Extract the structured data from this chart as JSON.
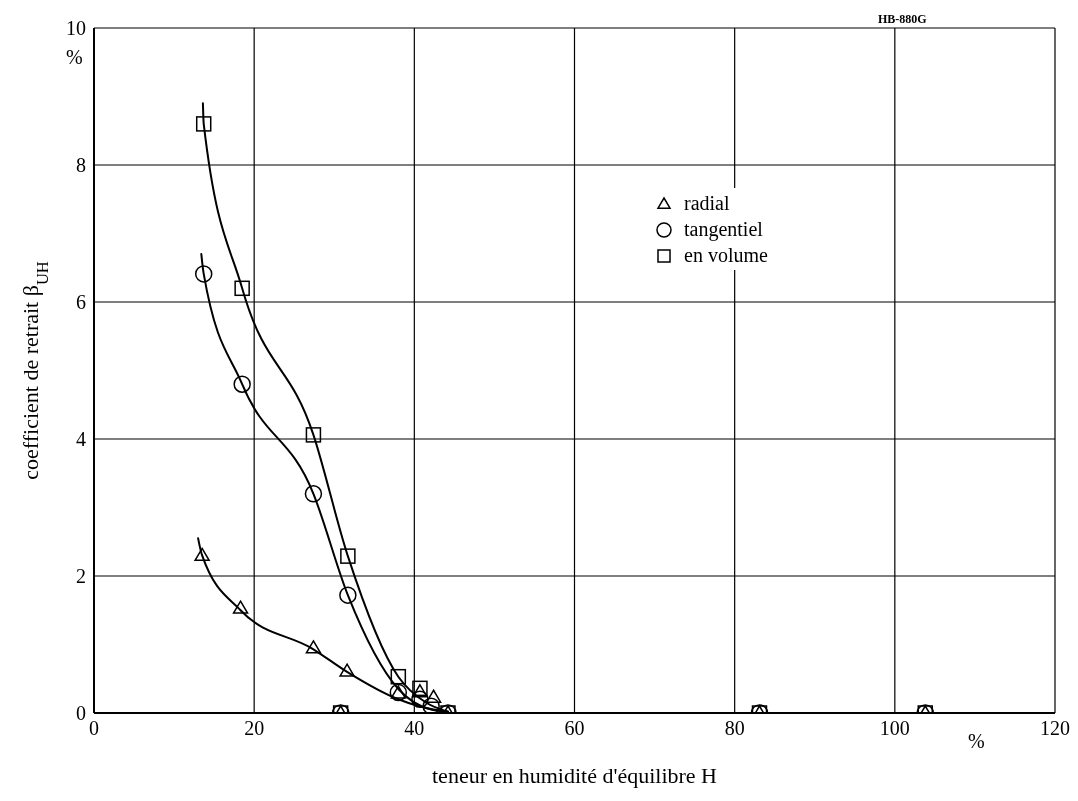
{
  "chart_data": {
    "type": "scatter",
    "xlabel": "teneur en humidité d'équilibre  H",
    "ylabel": "coefficient de retrait  β$_{UH}$",
    "annotations": [
      "HB-880G",
      "%",
      "%"
    ],
    "xlim": [
      0,
      120
    ],
    "xticks": [
      0,
      20,
      40,
      60,
      80,
      100,
      120
    ],
    "ylim": [
      0,
      10
    ],
    "yticks": [
      0,
      2,
      4,
      6,
      8,
      10
    ],
    "grid": true,
    "legend": "top right",
    "series": [
      {
        "name": "radial",
        "color": "#000000",
        "marker": "triangle",
        "x": [
          13.5,
          18.3,
          27.4,
          31.6,
          38,
          40.7,
          42.4,
          44.2,
          30.8,
          83.1,
          103.8
        ],
        "values": [
          2.3,
          1.53,
          0.95,
          0.61,
          0.29,
          0.31,
          0.23,
          0,
          0,
          0,
          0
        ]
      },
      {
        "name": "tangentiel",
        "color": "#000000",
        "marker": "circle",
        "x": [
          13.7,
          18.5,
          27.4,
          31.7,
          38,
          40.7,
          42.1,
          44.2,
          30.8,
          83.1,
          103.8
        ],
        "values": [
          6.41,
          4.8,
          3.2,
          1.72,
          0.3,
          0.2,
          0.1,
          0,
          0,
          0,
          0
        ]
      },
      {
        "name": "en volume",
        "color": "#000000",
        "marker": "square",
        "x": [
          13.7,
          18.5,
          27.4,
          31.7,
          38,
          40.7,
          44.2,
          30.8,
          83.1,
          103.8
        ],
        "values": [
          8.6,
          6.2,
          4.06,
          2.29,
          0.53,
          0.36,
          0,
          0,
          0,
          0
        ]
      },
      {
        "type": "line",
        "color": "#000000",
        "marker": "none",
        "x": [
          13,
          13.5,
          18.3,
          27.4,
          31.6,
          38,
          42.4,
          44.2
        ],
        "values": [
          2.55,
          2.3,
          1.5,
          0.93,
          0.6,
          0.2,
          0.05,
          0.02
        ]
      },
      {
        "type": "line",
        "color": "#000000",
        "marker": "none",
        "x": [
          13.4,
          13.7,
          18.5,
          27.4,
          31.7,
          38,
          42.1,
          44.2
        ],
        "values": [
          6.7,
          6.41,
          4.8,
          3.2,
          1.72,
          0.35,
          0.05,
          0.02
        ]
      },
      {
        "type": "line",
        "color": "#000000",
        "marker": "none",
        "x": [
          13.6,
          13.7,
          18.5,
          27.4,
          31.7,
          38,
          41.5,
          44.2
        ],
        "values": [
          8.9,
          8.6,
          6.2,
          4.06,
          2.29,
          0.53,
          0.15,
          0.02
        ]
      }
    ]
  }
}
